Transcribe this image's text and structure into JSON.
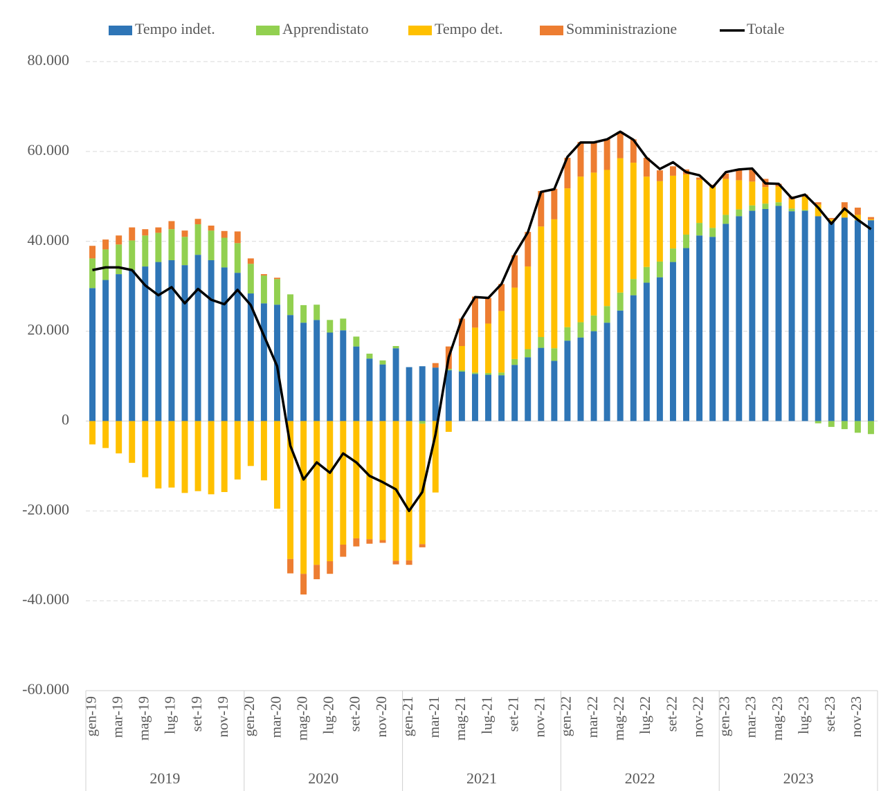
{
  "chart_data": {
    "type": "bar",
    "stacked": true,
    "categories": [
      "gen-19",
      null,
      "mar-19",
      null,
      "mag-19",
      null,
      "lug-19",
      null,
      "set-19",
      null,
      "nov-19",
      null,
      "gen-20",
      null,
      "mar-20",
      null,
      "mag-20",
      null,
      "lug-20",
      null,
      "set-20",
      null,
      "nov-20",
      null,
      "gen-21",
      null,
      "mar-21",
      null,
      "mag-21",
      null,
      "lug-21",
      null,
      "set-21",
      null,
      "nov-21",
      null,
      "gen-22",
      null,
      "mar-22",
      null,
      "mag-22",
      null,
      "lug-22",
      null,
      "set-22",
      null,
      "nov-22",
      null,
      "gen-23",
      null,
      "mar-23",
      null,
      "mag-23",
      null,
      "lug-23",
      null,
      "set-23",
      null,
      "nov-23",
      null
    ],
    "groups": [
      "2019",
      "2020",
      "2021",
      "2022",
      "2023"
    ],
    "series": [
      {
        "name": "Tempo indet.",
        "color": "#2e75b6",
        "type": "bar",
        "values": [
          29600,
          31400,
          32700,
          33600,
          34400,
          35400,
          35800,
          34700,
          37000,
          35800,
          34200,
          33000,
          28400,
          26200,
          25900,
          23600,
          21900,
          22500,
          19700,
          20200,
          16600,
          13900,
          12600,
          16200,
          12000,
          12200,
          11900,
          11300,
          11000,
          10500,
          10300,
          10200,
          12500,
          14200,
          16300,
          13400,
          17900,
          18600,
          20000,
          21900,
          24600,
          28000,
          30800,
          32000,
          35400,
          38500,
          41300,
          41000,
          43900,
          45600,
          46800,
          47200,
          47900,
          46700,
          46800,
          45600,
          44400,
          45300,
          44700,
          44700
        ]
      },
      {
        "name": "Apprendistato",
        "color": "#92d050",
        "type": "bar",
        "values": [
          6600,
          6800,
          6600,
          6600,
          6900,
          6500,
          6900,
          6300,
          6800,
          6600,
          6600,
          6600,
          6600,
          6200,
          5700,
          4600,
          3900,
          3400,
          2800,
          2600,
          2200,
          1100,
          900,
          500,
          0,
          -600,
          0,
          300,
          300,
          300,
          400,
          600,
          1300,
          1800,
          2400,
          2800,
          3000,
          3400,
          3500,
          3700,
          4000,
          3600,
          3500,
          3500,
          3000,
          3000,
          2800,
          2000,
          2000,
          1500,
          1200,
          1200,
          800,
          600,
          200,
          -500,
          -1300,
          -1800,
          -2600,
          -2900
        ]
      },
      {
        "name": "Tempo det.",
        "color": "#ffc000",
        "type": "bar",
        "values": [
          -5200,
          -6000,
          -7200,
          -9300,
          -12500,
          -15000,
          -14800,
          -16000,
          -15600,
          -16300,
          -15800,
          -13000,
          -10000,
          -13200,
          -19500,
          -30700,
          -34000,
          -32000,
          -31200,
          -27500,
          -26100,
          -26300,
          -26500,
          -31100,
          -31000,
          -26800,
          -15900,
          -2400,
          5400,
          10000,
          11000,
          13700,
          15900,
          18400,
          24600,
          28700,
          30900,
          32400,
          31800,
          30300,
          29900,
          25900,
          20100,
          17900,
          16200,
          13400,
          9600,
          9100,
          8000,
          6500,
          5300,
          3700,
          3500,
          2000,
          2900,
          2600,
          500,
          2000,
          1200,
          200
        ]
      },
      {
        "name": "Somministrazione",
        "color": "#ed7d31",
        "type": "bar",
        "values": [
          2800,
          2200,
          2000,
          2900,
          1400,
          1200,
          1800,
          1400,
          1200,
          1100,
          1500,
          2600,
          1200,
          300,
          300,
          -3200,
          -4600,
          -3200,
          -2800,
          -2700,
          -1800,
          -1000,
          -600,
          -800,
          -1000,
          -700,
          1000,
          5000,
          6100,
          6900,
          5700,
          6000,
          7200,
          7700,
          7900,
          6800,
          6800,
          7700,
          6800,
          6900,
          5900,
          5200,
          4200,
          2400,
          2100,
          1100,
          500,
          500,
          1200,
          2300,
          2600,
          1800,
          600,
          700,
          500,
          500,
          300,
          1400,
          1600,
          500
        ]
      },
      {
        "name": "Totale",
        "color": "#000000",
        "type": "line",
        "values": [
          33600,
          34200,
          34200,
          33600,
          30200,
          28000,
          29800,
          26200,
          29400,
          27000,
          26000,
          29200,
          25800,
          19000,
          12200,
          -5500,
          -13000,
          -9200,
          -11500,
          -7200,
          -9200,
          -12200,
          -13600,
          -15200,
          -20000,
          -15800,
          -3000,
          14200,
          22800,
          27600,
          27400,
          30500,
          37100,
          42000,
          51000,
          51600,
          58800,
          62000,
          62000,
          62700,
          64400,
          62600,
          58600,
          56100,
          57600,
          55400,
          54700,
          52000,
          55400,
          56000,
          56200,
          52900,
          52800,
          49600,
          50400,
          47500,
          43900,
          47300,
          44800,
          42700
        ]
      }
    ],
    "ylim": [
      -60000,
      80000
    ],
    "yticks": [
      {
        "value": -60000,
        "label": "-60.000"
      },
      {
        "value": -40000,
        "label": "-40.000"
      },
      {
        "value": -20000,
        "label": "-20.000"
      },
      0,
      {
        "value": 20000,
        "label": "20.000"
      },
      {
        "value": 40000,
        "label": "40.000"
      },
      {
        "value": 60000,
        "label": "60.000"
      },
      {
        "value": 80000,
        "label": "80.000"
      }
    ],
    "grid": true,
    "legend": "top"
  }
}
